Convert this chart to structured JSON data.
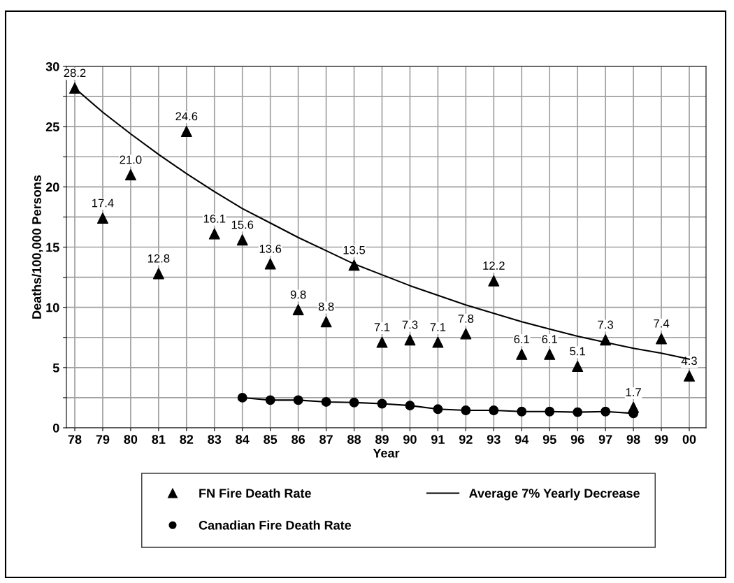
{
  "chart_data": {
    "type": "scatter",
    "xlabel": "Year",
    "ylabel": "Deaths/100,000 Persons",
    "categories": [
      "78",
      "79",
      "80",
      "81",
      "82",
      "83",
      "84",
      "85",
      "86",
      "87",
      "88",
      "89",
      "90",
      "91",
      "92",
      "93",
      "94",
      "95",
      "96",
      "97",
      "98",
      "99",
      "00"
    ],
    "series": [
      {
        "name": "FN Fire Death Rate",
        "marker": "triangle",
        "color": "#000000",
        "values": [
          28.2,
          17.4,
          21.0,
          12.8,
          24.6,
          16.1,
          15.6,
          13.6,
          9.8,
          8.8,
          13.5,
          7.1,
          7.3,
          7.1,
          7.8,
          12.2,
          6.1,
          6.1,
          5.1,
          7.3,
          1.7,
          7.4,
          4.3
        ],
        "value_labels": [
          "28.2",
          "17.4",
          "21.0",
          "12.8",
          "24.6",
          "16.1",
          "15.6",
          "13.6",
          "9.8",
          "8.8",
          "13.5",
          "7.1",
          "7.3",
          "7.1",
          "7.8",
          "12.2",
          "6.1",
          "6.1",
          "5.1",
          "7.3",
          "1.7",
          "7.4",
          "4.3"
        ]
      },
      {
        "name": "Average 7% Yearly Decrease",
        "type": "line",
        "marker": "none",
        "color": "#000000",
        "values": [
          28.2,
          26.2,
          24.4,
          22.7,
          21.1,
          19.6,
          18.2,
          17.0,
          15.8,
          14.7,
          13.6,
          12.7,
          11.8,
          11.0,
          10.2,
          9.5,
          8.8,
          8.2,
          7.6,
          7.1,
          6.6,
          6.2,
          5.7
        ]
      },
      {
        "name": "Canadian Fire Death Rate",
        "type": "line",
        "marker": "circle",
        "color": "#000000",
        "values": [
          null,
          null,
          null,
          null,
          null,
          null,
          2.5,
          2.3,
          2.3,
          2.15,
          2.1,
          2.0,
          1.85,
          1.55,
          1.45,
          1.45,
          1.35,
          1.35,
          1.3,
          1.35,
          1.2,
          null,
          null
        ]
      }
    ],
    "ylim": [
      0,
      30
    ],
    "yticks": [
      0,
      {
        "value": 2.5,
        "label": null
      },
      5,
      {
        "value": 7.5,
        "label": null
      },
      10,
      {
        "value": 12.5,
        "label": null
      },
      15,
      {
        "value": 17.5,
        "label": null
      },
      20,
      {
        "value": 22.5,
        "label": null
      },
      25,
      {
        "value": 27.5,
        "label": null
      },
      30
    ],
    "grid": true,
    "legend": "bottom"
  }
}
